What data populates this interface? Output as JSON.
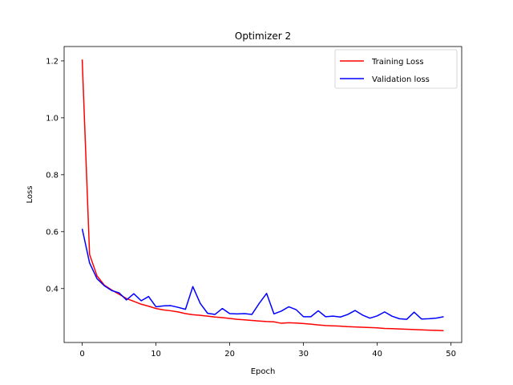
{
  "chart_data": {
    "type": "line",
    "title": "Optimizer 2",
    "xlabel": "Epoch",
    "ylabel": "Loss",
    "xlim": [
      -2.45,
      51.45
    ],
    "ylim": [
      0.2105,
      1.2505
    ],
    "xticks": [
      0,
      10,
      20,
      30,
      40,
      50
    ],
    "yticks": [
      0.4,
      0.6,
      0.8,
      1.0,
      1.2
    ],
    "ytick_labels": [
      "0.4",
      "0.6",
      "0.8",
      "1.0",
      "1.2"
    ],
    "grid": false,
    "legend": "top-right",
    "x": [
      0,
      1,
      2,
      3,
      4,
      5,
      6,
      7,
      8,
      9,
      10,
      11,
      12,
      13,
      14,
      15,
      16,
      17,
      18,
      19,
      20,
      21,
      22,
      23,
      24,
      25,
      26,
      27,
      28,
      29,
      30,
      31,
      32,
      33,
      34,
      35,
      36,
      37,
      38,
      39,
      40,
      41,
      42,
      43,
      44,
      45,
      46,
      47,
      48,
      49
    ],
    "series": [
      {
        "name": "Training Loss",
        "color": "#ff0000",
        "values": [
          1.205,
          0.52,
          0.445,
          0.412,
          0.395,
          0.38,
          0.365,
          0.355,
          0.345,
          0.338,
          0.33,
          0.325,
          0.322,
          0.318,
          0.312,
          0.308,
          0.306,
          0.303,
          0.3,
          0.298,
          0.295,
          0.292,
          0.29,
          0.288,
          0.286,
          0.284,
          0.283,
          0.278,
          0.28,
          0.279,
          0.277,
          0.275,
          0.272,
          0.27,
          0.269,
          0.268,
          0.266,
          0.265,
          0.264,
          0.263,
          0.262,
          0.26,
          0.259,
          0.258,
          0.257,
          0.256,
          0.255,
          0.254,
          0.253,
          0.252
        ]
      },
      {
        "name": "Validation loss",
        "color": "#0000ff",
        "values": [
          0.61,
          0.49,
          0.435,
          0.41,
          0.393,
          0.385,
          0.36,
          0.382,
          0.357,
          0.372,
          0.336,
          0.339,
          0.34,
          0.334,
          0.327,
          0.407,
          0.348,
          0.313,
          0.309,
          0.33,
          0.312,
          0.311,
          0.312,
          0.309,
          0.348,
          0.383,
          0.311,
          0.321,
          0.336,
          0.326,
          0.301,
          0.301,
          0.322,
          0.301,
          0.303,
          0.3,
          0.309,
          0.323,
          0.307,
          0.296,
          0.304,
          0.318,
          0.303,
          0.294,
          0.292,
          0.317,
          0.293,
          0.294,
          0.296,
          0.301
        ]
      }
    ]
  }
}
